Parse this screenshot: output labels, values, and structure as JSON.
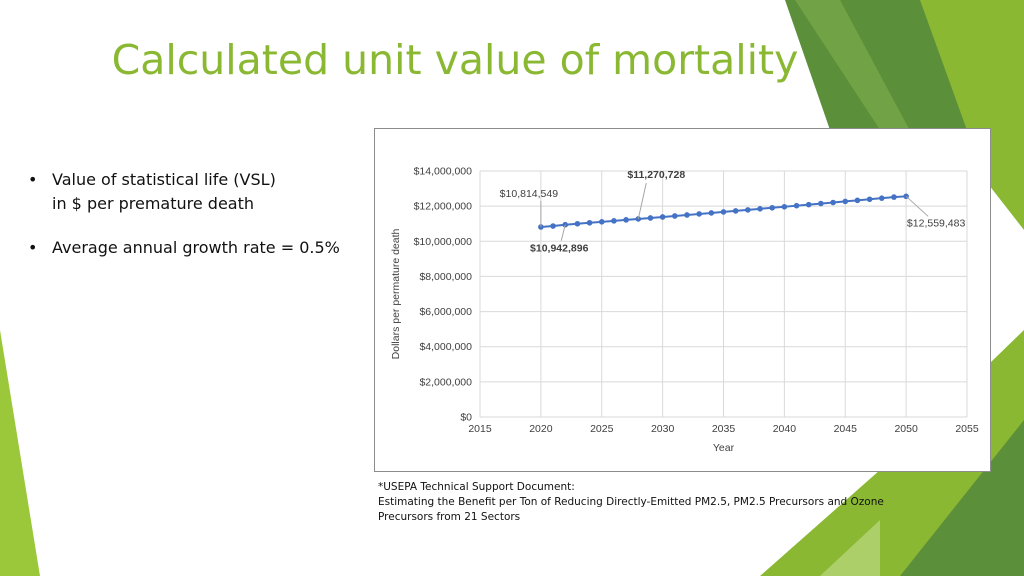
{
  "slide": {
    "title": "Calculated unit value of mortality",
    "bullets": [
      {
        "line1": "Value of statistical life (VSL)",
        "line2": "in $ per premature death"
      },
      {
        "line1": "Average annual growth rate = 0.5%",
        "line2": ""
      }
    ],
    "bullet_glyph": "•",
    "source": {
      "line1": "*USEPA Technical Support Document:",
      "line2": "Estimating the Benefit per Ton of Reducing Directly-Emitted PM2.5, PM2.5 Precursors and Ozone",
      "line3": "Precursors from 21 Sectors"
    },
    "colors": {
      "title": "#8ab833",
      "accent_dark": "#5c8f3a",
      "accent_light": "#9bc83a"
    }
  },
  "chart_data": {
    "type": "line",
    "xlabel": "Year",
    "ylabel": "Dollars per permature death",
    "xlim": [
      2015,
      2055
    ],
    "ylim": [
      0,
      14000000
    ],
    "xticks": [
      2015,
      2020,
      2025,
      2030,
      2035,
      2040,
      2045,
      2050,
      2055
    ],
    "yticks": [
      0,
      2000000,
      4000000,
      6000000,
      8000000,
      10000000,
      12000000,
      14000000
    ],
    "ytick_labels": [
      "$0",
      "$2,000,000",
      "$4,000,000",
      "$6,000,000",
      "$8,000,000",
      "$10,000,000",
      "$12,000,000",
      "$14,000,000"
    ],
    "grid": true,
    "series_color": "#4472c4",
    "x": [
      2020,
      2021,
      2022,
      2023,
      2024,
      2025,
      2026,
      2027,
      2028,
      2029,
      2030,
      2031,
      2032,
      2033,
      2034,
      2035,
      2036,
      2037,
      2038,
      2039,
      2040,
      2041,
      2042,
      2043,
      2044,
      2045,
      2046,
      2047,
      2048,
      2049,
      2050
    ],
    "y": [
      10814549,
      10868622,
      10942896,
      10997610,
      11052598,
      11107861,
      11163400,
      11219217,
      11270728,
      11327082,
      11383717,
      11440636,
      11497839,
      11555328,
      11613105,
      11671170,
      11729526,
      11788174,
      11847115,
      11906350,
      11965882,
      12025711,
      12085840,
      12146269,
      12207000,
      12268035,
      12329375,
      12391022,
      12452977,
      12515242,
      12559483
    ],
    "annotations": [
      {
        "label": "$10,814,549",
        "x": 2020,
        "y": 10814549,
        "bold": false
      },
      {
        "label": "$11,270,728",
        "x": 2028,
        "y": 11270728,
        "bold": true
      },
      {
        "label": "$10,942,896",
        "x": 2022,
        "y": 10942896,
        "bold": true
      },
      {
        "label": "$12,559,483",
        "x": 2050,
        "y": 12559483,
        "bold": false
      }
    ]
  }
}
